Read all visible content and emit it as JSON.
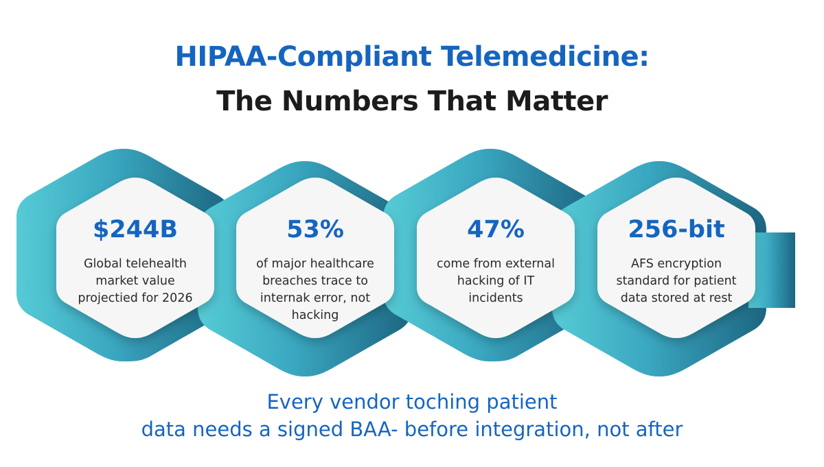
{
  "header": {
    "title_line1": "HIPAA-Compliant Telemedicine:",
    "title_line2": "The Numbers That Matter"
  },
  "stats": [
    {
      "value": "$244B",
      "desc": [
        "Global telehealth",
        "market value",
        "projectied for 2026"
      ]
    },
    {
      "value": "53%",
      "desc": [
        "of major healthcare",
        "breaches trace to",
        "internak error, not",
        "hacking"
      ]
    },
    {
      "value": "47%",
      "desc": [
        "come from external",
        "hacking of IT",
        "incidents"
      ]
    },
    {
      "value": "256-bit",
      "desc": [
        "AFS encryption",
        "standard for patient",
        "data stored at rest"
      ]
    }
  ],
  "footer": {
    "line1": "Every vendor toching patient",
    "line2": "data needs a signed BAA- before integration, not after"
  },
  "colors": {
    "title_blue": "#1565c0",
    "title_dark": "#1c1c1c",
    "ribbon_start": "#4ec8d4",
    "ribbon_end": "#1e6a86",
    "card_bg": "#f6f6f6"
  }
}
